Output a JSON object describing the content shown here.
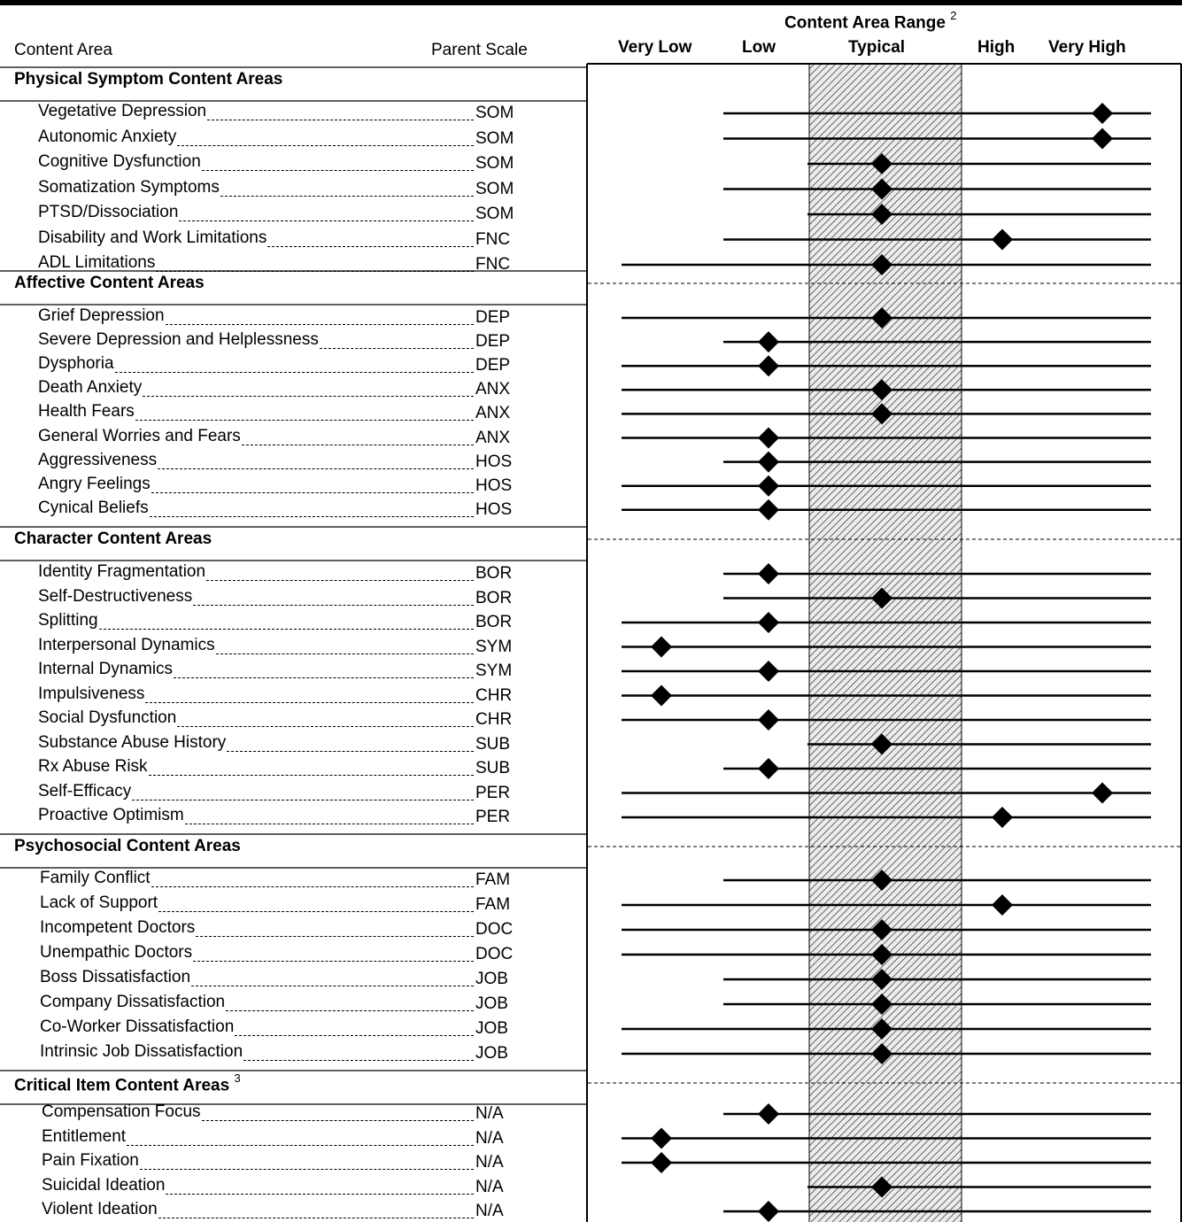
{
  "header": {
    "range_title": "Content Area Range",
    "range_footnote": "2",
    "col_content_area": "Content Area",
    "col_parent_scale": "Parent Scale",
    "levels": [
      "Very Low",
      "Low",
      "Typical",
      "High",
      "Very High"
    ]
  },
  "sections": [
    {
      "title": "Physical Symptom Content Areas",
      "footnote": "",
      "items": [
        {
          "label": "Vegetative Depression",
          "scale": "SOM",
          "range": [
            "Low",
            "Very High"
          ],
          "score": "Very High"
        },
        {
          "label": "Autonomic Anxiety",
          "scale": "SOM",
          "range": [
            "Low",
            "Very High"
          ],
          "score": "Very High"
        },
        {
          "label": "Cognitive Dysfunction",
          "scale": "SOM",
          "range": [
            "Typical",
            "Very High"
          ],
          "score": "Typical"
        },
        {
          "label": "Somatization Symptoms",
          "scale": "SOM",
          "range": [
            "Low",
            "Very High"
          ],
          "score": "Typical"
        },
        {
          "label": "PTSD/Dissociation",
          "scale": "SOM",
          "range": [
            "Typical",
            "Very High"
          ],
          "score": "Typical"
        },
        {
          "label": "Disability and Work Limitations",
          "scale": "FNC",
          "range": [
            "Low",
            "Very High"
          ],
          "score": "High"
        },
        {
          "label": "ADL Limitations",
          "scale": "FNC",
          "range": [
            "Very Low",
            "Very High"
          ],
          "score": "Typical"
        }
      ]
    },
    {
      "title": "Affective Content Areas",
      "footnote": "",
      "items": [
        {
          "label": "Grief Depression",
          "scale": "DEP",
          "range": [
            "Very Low",
            "Very High"
          ],
          "score": "Typical"
        },
        {
          "label": "Severe Depression and Helplessness",
          "scale": "DEP",
          "range": [
            "Low",
            "Very High"
          ],
          "score": "Low"
        },
        {
          "label": "Dysphoria",
          "scale": "DEP",
          "range": [
            "Very Low",
            "Very High"
          ],
          "score": "Low"
        },
        {
          "label": "Death Anxiety",
          "scale": "ANX",
          "range": [
            "Very Low",
            "Very High"
          ],
          "score": "Typical"
        },
        {
          "label": "Health Fears",
          "scale": "ANX",
          "range": [
            "Very Low",
            "Very High"
          ],
          "score": "Typical"
        },
        {
          "label": "General Worries and Fears",
          "scale": "ANX",
          "range": [
            "Very Low",
            "Very High"
          ],
          "score": "Low"
        },
        {
          "label": "Aggressiveness",
          "scale": "HOS",
          "range": [
            "Low",
            "Very High"
          ],
          "score": "Low"
        },
        {
          "label": "Angry Feelings",
          "scale": "HOS",
          "range": [
            "Very Low",
            "Very High"
          ],
          "score": "Low"
        },
        {
          "label": "Cynical Beliefs",
          "scale": "HOS",
          "range": [
            "Very Low",
            "Very High"
          ],
          "score": "Low"
        }
      ]
    },
    {
      "title": "Character Content Areas",
      "footnote": "",
      "items": [
        {
          "label": "Identity Fragmentation",
          "scale": "BOR",
          "range": [
            "Low",
            "Very High"
          ],
          "score": "Low"
        },
        {
          "label": "Self-Destructiveness",
          "scale": "BOR",
          "range": [
            "Low",
            "Very High"
          ],
          "score": "Typical"
        },
        {
          "label": "Splitting",
          "scale": "BOR",
          "range": [
            "Very Low",
            "Very High"
          ],
          "score": "Low"
        },
        {
          "label": "Interpersonal Dynamics",
          "scale": "SYM",
          "range": [
            "Very Low",
            "Very High"
          ],
          "score": "Very Low"
        },
        {
          "label": "Internal Dynamics",
          "scale": "SYM",
          "range": [
            "Very Low",
            "Very High"
          ],
          "score": "Low"
        },
        {
          "label": "Impulsiveness",
          "scale": "CHR",
          "range": [
            "Very Low",
            "Very High"
          ],
          "score": "Very Low"
        },
        {
          "label": "Social Dysfunction",
          "scale": "CHR",
          "range": [
            "Very Low",
            "Very High"
          ],
          "score": "Low"
        },
        {
          "label": "Substance Abuse History",
          "scale": "SUB",
          "range": [
            "Typical",
            "Very High"
          ],
          "score": "Typical"
        },
        {
          "label": "Rx Abuse Risk",
          "scale": "SUB",
          "range": [
            "Low",
            "Very High"
          ],
          "score": "Low"
        },
        {
          "label": "Self-Efficacy",
          "scale": "PER",
          "range": [
            "Very Low",
            "Very High"
          ],
          "score": "Very High"
        },
        {
          "label": "Proactive Optimism",
          "scale": "PER",
          "range": [
            "Very Low",
            "Very High"
          ],
          "score": "High"
        }
      ]
    },
    {
      "title": "Psychosocial Content Areas",
      "footnote": "",
      "items": [
        {
          "label": "Family Conflict",
          "scale": "FAM",
          "range": [
            "Low",
            "Very High"
          ],
          "score": "Typical"
        },
        {
          "label": "Lack of Support",
          "scale": "FAM",
          "range": [
            "Very Low",
            "Very High"
          ],
          "score": "High"
        },
        {
          "label": "Incompetent Doctors",
          "scale": "DOC",
          "range": [
            "Very Low",
            "Very High"
          ],
          "score": "Typical"
        },
        {
          "label": "Unempathic Doctors",
          "scale": "DOC",
          "range": [
            "Very Low",
            "Very High"
          ],
          "score": "Typical"
        },
        {
          "label": "Boss Dissatisfaction",
          "scale": "JOB",
          "range": [
            "Low",
            "Very High"
          ],
          "score": "Typical"
        },
        {
          "label": "Company Dissatisfaction",
          "scale": "JOB",
          "range": [
            "Low",
            "Very High"
          ],
          "score": "Typical"
        },
        {
          "label": "Co-Worker Dissatisfaction",
          "scale": "JOB",
          "range": [
            "Very Low",
            "Very High"
          ],
          "score": "Typical"
        },
        {
          "label": "Intrinsic Job Dissatisfaction",
          "scale": "JOB",
          "range": [
            "Very Low",
            "Very High"
          ],
          "score": "Typical"
        }
      ]
    },
    {
      "title": "Critical Item Content Areas",
      "footnote": "3",
      "items": [
        {
          "label": "Compensation Focus",
          "scale": "N/A",
          "range": [
            "Low",
            "Very High"
          ],
          "score": "Low"
        },
        {
          "label": "Entitlement",
          "scale": "N/A",
          "range": [
            "Very Low",
            "Very High"
          ],
          "score": "Very Low"
        },
        {
          "label": "Pain Fixation",
          "scale": "N/A",
          "range": [
            "Very Low",
            "Very High"
          ],
          "score": "Very Low"
        },
        {
          "label": "Suicidal Ideation",
          "scale": "N/A",
          "range": [
            "Typical",
            "Very High"
          ],
          "score": "Typical"
        },
        {
          "label": "Violent Ideation",
          "scale": "N/A",
          "range": [
            "Low",
            "Very High"
          ],
          "score": "Low"
        }
      ]
    }
  ]
}
